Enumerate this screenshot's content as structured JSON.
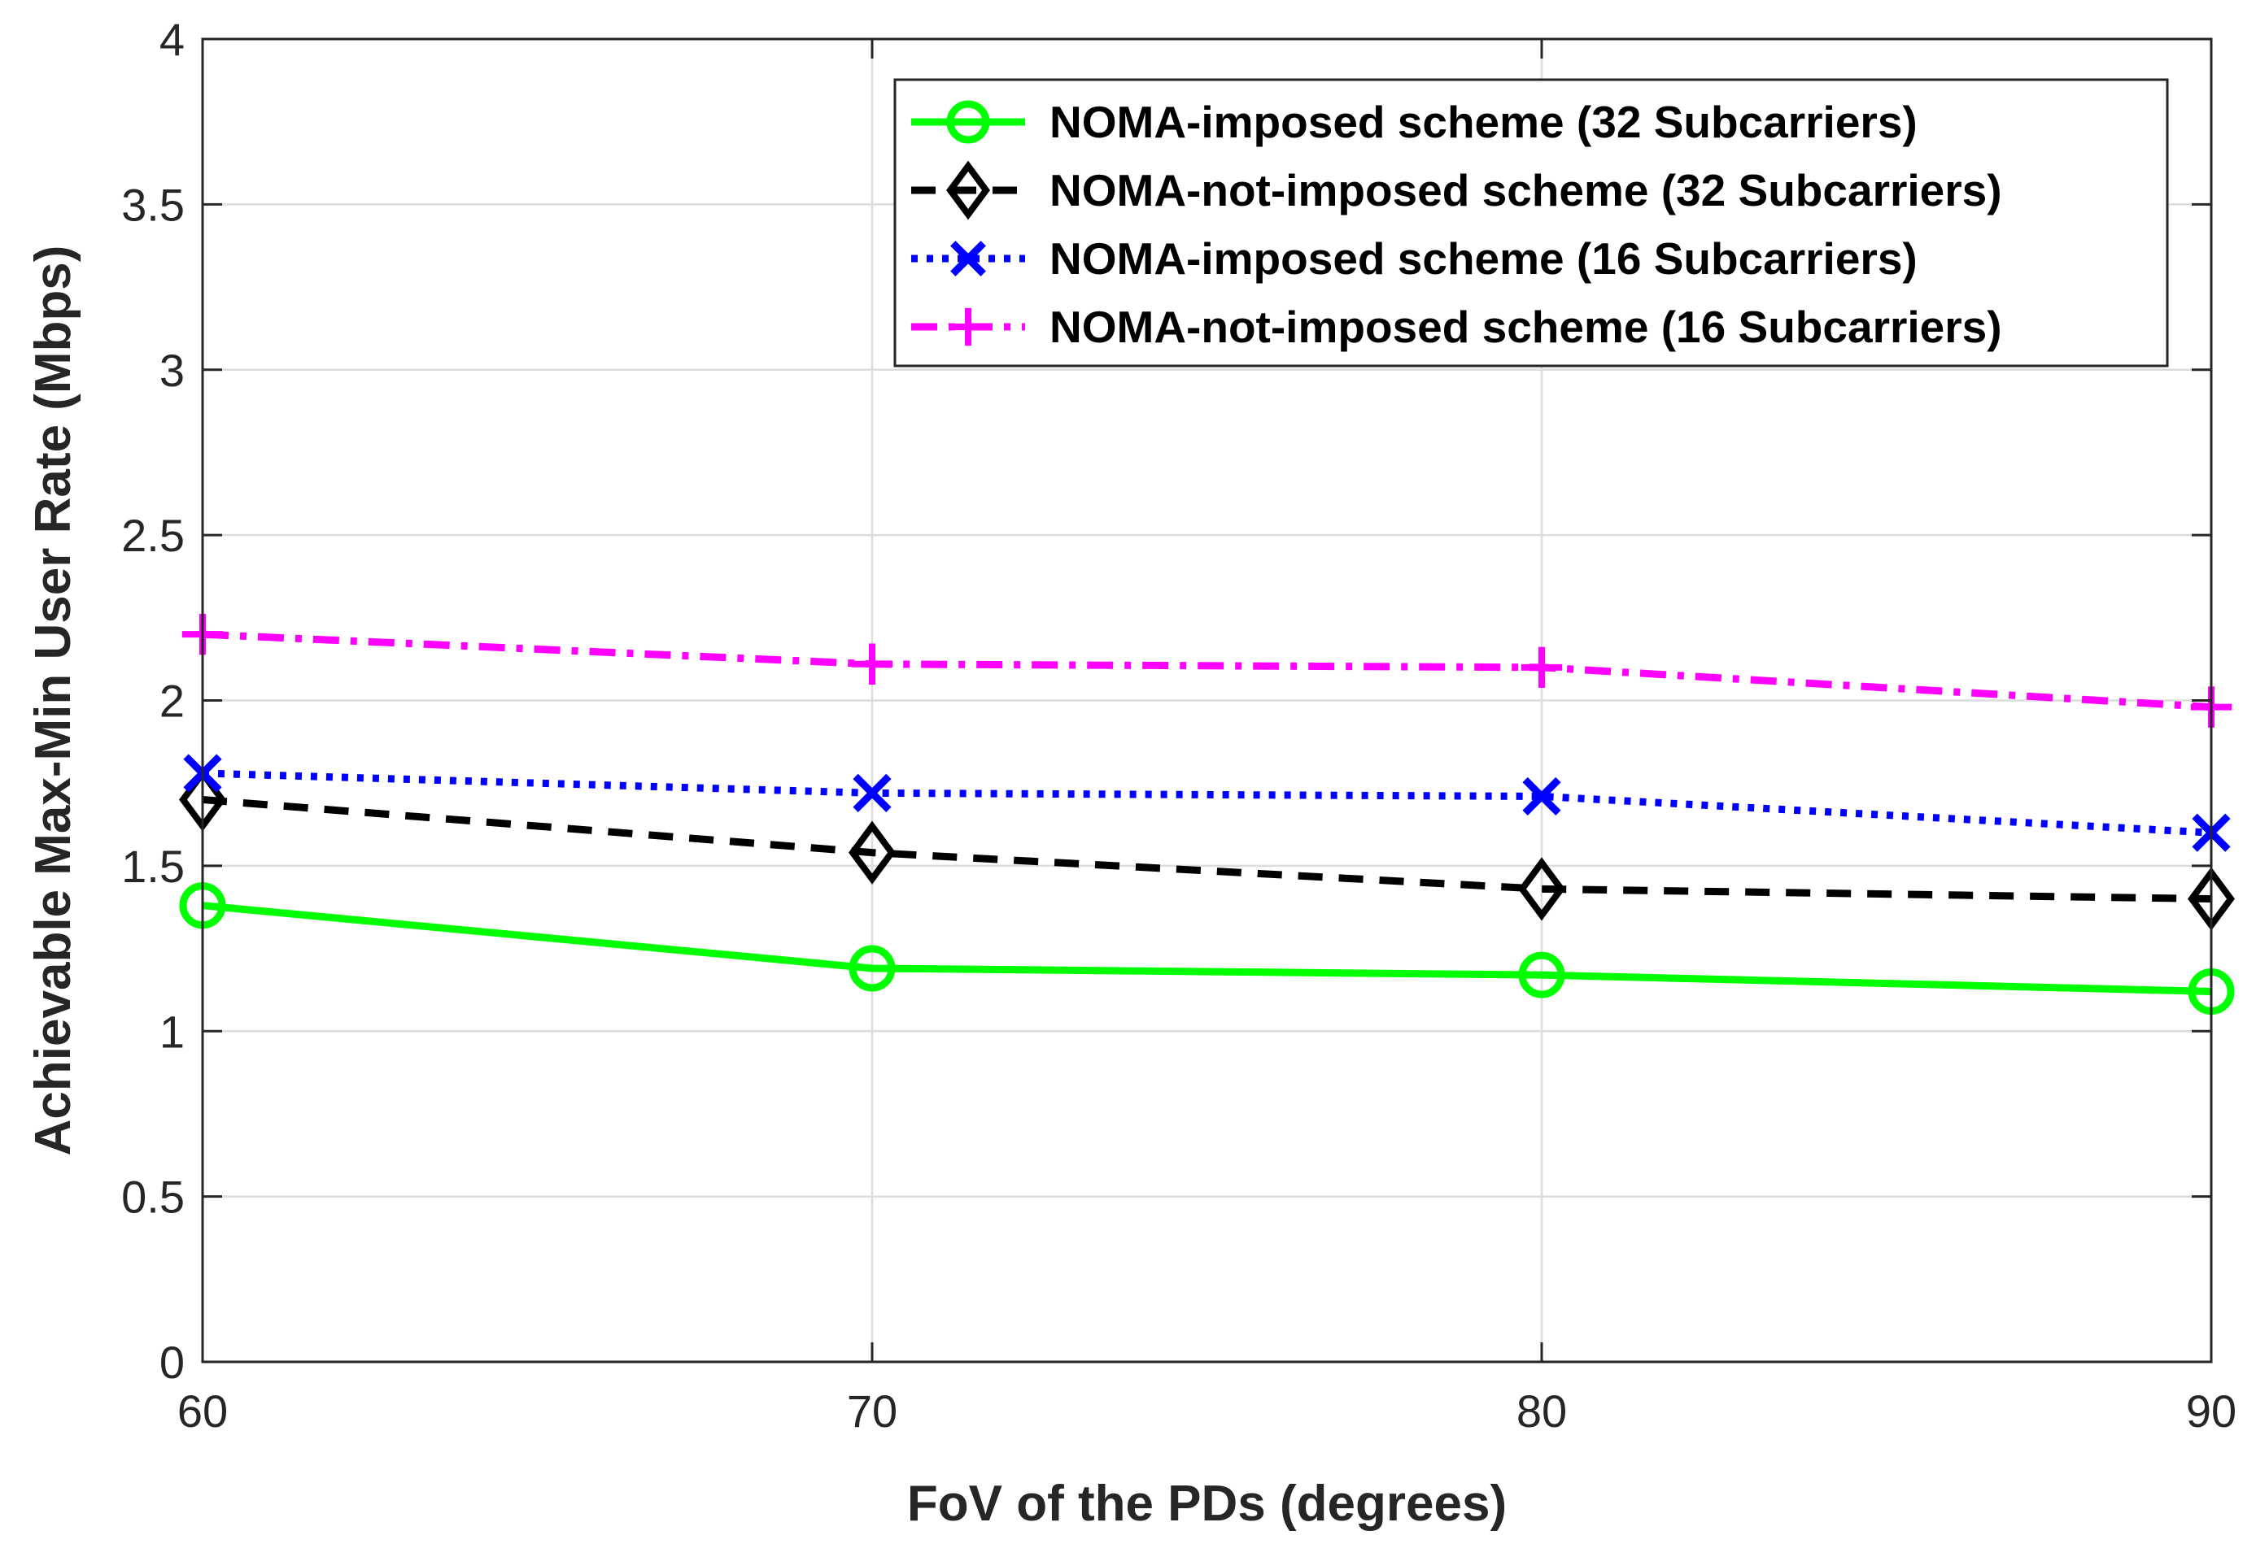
{
  "chart_data": {
    "type": "line",
    "title": "",
    "xlabel": "FoV of the PDs (degrees)",
    "ylabel": "Achievable Max-Min User Rate (Mbps)",
    "x": [
      60,
      70,
      80,
      90
    ],
    "xlim": [
      60,
      90
    ],
    "ylim": [
      0,
      4
    ],
    "xticks": [
      60,
      70,
      80,
      90
    ],
    "xtick_labels": [
      "60",
      "70",
      "80",
      "90"
    ],
    "yticks": [
      0,
      0.5,
      1,
      1.5,
      2,
      2.5,
      3,
      3.5,
      4
    ],
    "ytick_labels": [
      "0",
      "0.5",
      "1",
      "1.5",
      "2",
      "2.5",
      "3",
      "3.5",
      "4"
    ],
    "grid": true,
    "legend_position": "top-right",
    "series": [
      {
        "name": "NOMA-imposed scheme (32 Subcarriers)",
        "values": [
          1.38,
          1.19,
          1.17,
          1.12
        ],
        "color": "#00ff00",
        "line_style": "solid",
        "marker": "circle"
      },
      {
        "name": "NOMA-not-imposed scheme (32 Subcarriers)",
        "values": [
          1.7,
          1.54,
          1.43,
          1.4
        ],
        "color": "#000000",
        "line_style": "dashed",
        "marker": "diamond"
      },
      {
        "name": "NOMA-imposed scheme (16 Subcarriers)",
        "values": [
          1.78,
          1.72,
          1.71,
          1.6
        ],
        "color": "#0000ff",
        "line_style": "dotted",
        "marker": "x"
      },
      {
        "name": "NOMA-not-imposed scheme (16 Subcarriers)",
        "values": [
          2.2,
          2.11,
          2.1,
          1.98
        ],
        "color": "#ff00ff",
        "line_style": "dashdot",
        "marker": "plus"
      }
    ]
  }
}
